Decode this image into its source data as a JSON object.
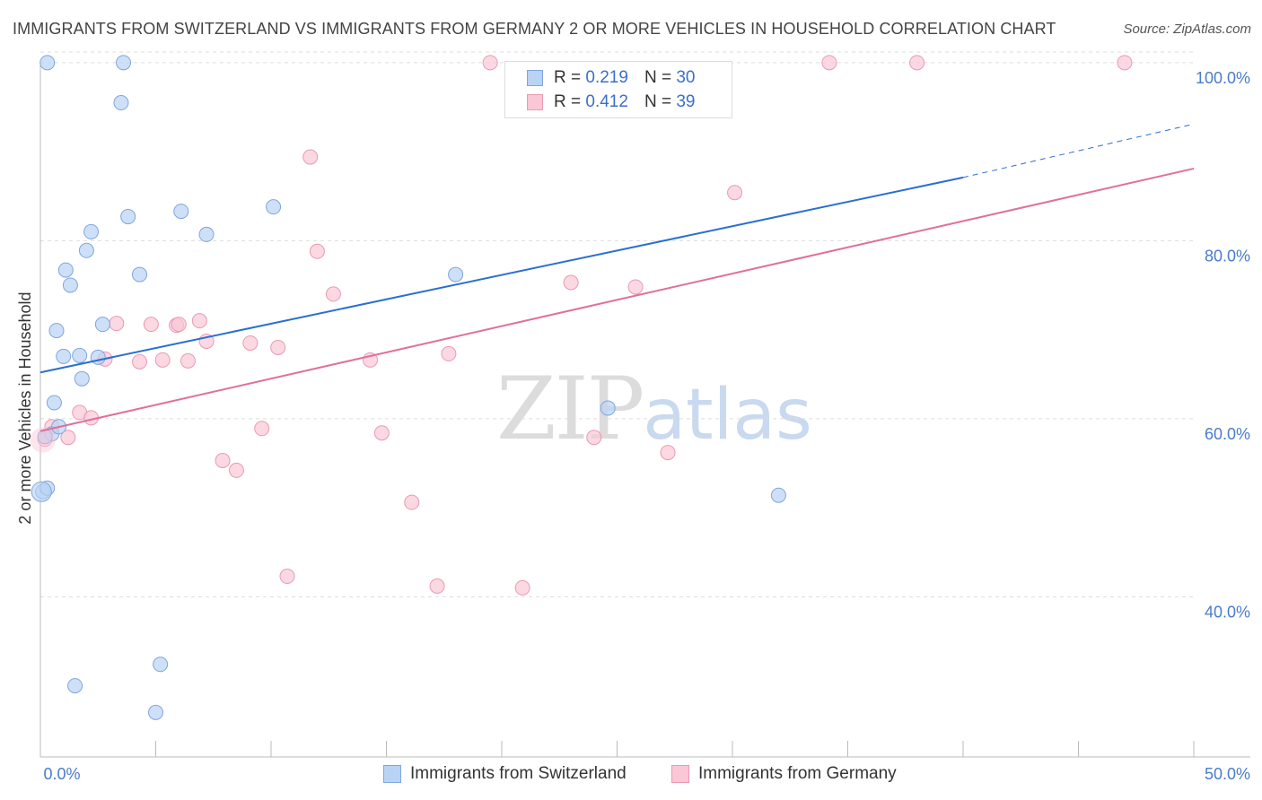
{
  "title": "IMMIGRANTS FROM SWITZERLAND VS IMMIGRANTS FROM GERMANY 2 OR MORE VEHICLES IN HOUSEHOLD CORRELATION CHART",
  "source": "Source: ZipAtlas.com",
  "watermark": {
    "zip": "ZIP",
    "atlas": "atlas"
  },
  "legend": {
    "rows": [
      {
        "r_label": "R =",
        "r_value": "0.219",
        "n_label": "N =",
        "n_value": "30"
      },
      {
        "r_label": "R =",
        "r_value": "0.412",
        "n_label": "N =",
        "n_value": "39"
      }
    ]
  },
  "bottom_legend": {
    "switzerland": "Immigrants from Switzerland",
    "germany": "Immigrants from Germany"
  },
  "colors": {
    "switzerland_fill": "#b9d3f5",
    "switzerland_stroke": "#7fa6dd",
    "switzerland_line": "#2a6fd1",
    "germany_fill": "#f9c7d6",
    "germany_stroke": "#e99ab3",
    "germany_line": "#e0709a",
    "tick": "#4a7cc9",
    "grid": "#dddddd"
  },
  "chart_data": {
    "type": "scatter",
    "xlabel": "",
    "ylabel": "2 or more Vehicles in Household",
    "xlim": [
      0,
      50
    ],
    "ylim": [
      22,
      102
    ],
    "x_tick_labels": [
      "0.0%",
      "50.0%"
    ],
    "y_ticks": [
      40,
      60,
      80,
      100
    ],
    "y_tick_labels": [
      "40.0%",
      "60.0%",
      "80.0%",
      "100.0%"
    ],
    "grid": true,
    "series": [
      {
        "name": "Immigrants from Switzerland",
        "R": 0.219,
        "N": 30,
        "x": [
          0.1,
          0.3,
          0.5,
          0.6,
          0.7,
          0.8,
          1.0,
          1.1,
          1.3,
          1.5,
          1.7,
          1.8,
          2.0,
          2.2,
          2.5,
          2.7,
          3.5,
          3.6,
          3.8,
          4.3,
          5.0,
          5.2,
          6.1,
          7.2,
          10.1,
          18.0,
          24.6,
          32.0,
          0.3,
          0.2
        ],
        "y": [
          51.8,
          52.2,
          58.3,
          61.8,
          69.9,
          59.1,
          67.0,
          76.7,
          75.0,
          30.0,
          67.1,
          64.5,
          78.9,
          81.0,
          66.9,
          70.6,
          95.5,
          100.0,
          82.7,
          76.2,
          27.0,
          32.4,
          83.3,
          80.7,
          83.8,
          76.2,
          61.2,
          51.4,
          100.0,
          58.0
        ],
        "fit": {
          "x0": 0,
          "y0": 65.2,
          "x1": 40,
          "y1": 87.1,
          "dash_to_x": 50,
          "dash_to_y": 93.1
        }
      },
      {
        "name": "Immigrants from Germany",
        "R": 0.412,
        "N": 39,
        "x": [
          0.2,
          0.5,
          1.2,
          1.7,
          2.2,
          2.8,
          3.3,
          4.3,
          4.8,
          5.3,
          5.9,
          6.0,
          6.4,
          6.9,
          7.2,
          7.9,
          8.5,
          9.1,
          9.6,
          10.3,
          10.7,
          11.7,
          12.0,
          12.7,
          14.3,
          14.8,
          16.1,
          17.2,
          17.7,
          19.5,
          20.9,
          23.0,
          24.0,
          25.8,
          27.2,
          30.1,
          34.2,
          38.0,
          47.0
        ],
        "y": [
          57.7,
          59.1,
          57.9,
          60.7,
          60.1,
          66.7,
          70.7,
          66.4,
          70.6,
          66.6,
          70.5,
          70.6,
          66.5,
          71.0,
          68.7,
          55.3,
          54.2,
          68.5,
          58.9,
          68.0,
          42.3,
          89.4,
          78.8,
          74.0,
          66.6,
          58.4,
          50.6,
          41.2,
          67.3,
          100.0,
          41.0,
          75.3,
          57.9,
          74.8,
          56.2,
          85.4,
          100.0,
          100.0,
          100.0
        ],
        "fit": {
          "x0": 0,
          "y0": 58.6,
          "x1": 50,
          "y1": 88.1
        }
      }
    ]
  }
}
